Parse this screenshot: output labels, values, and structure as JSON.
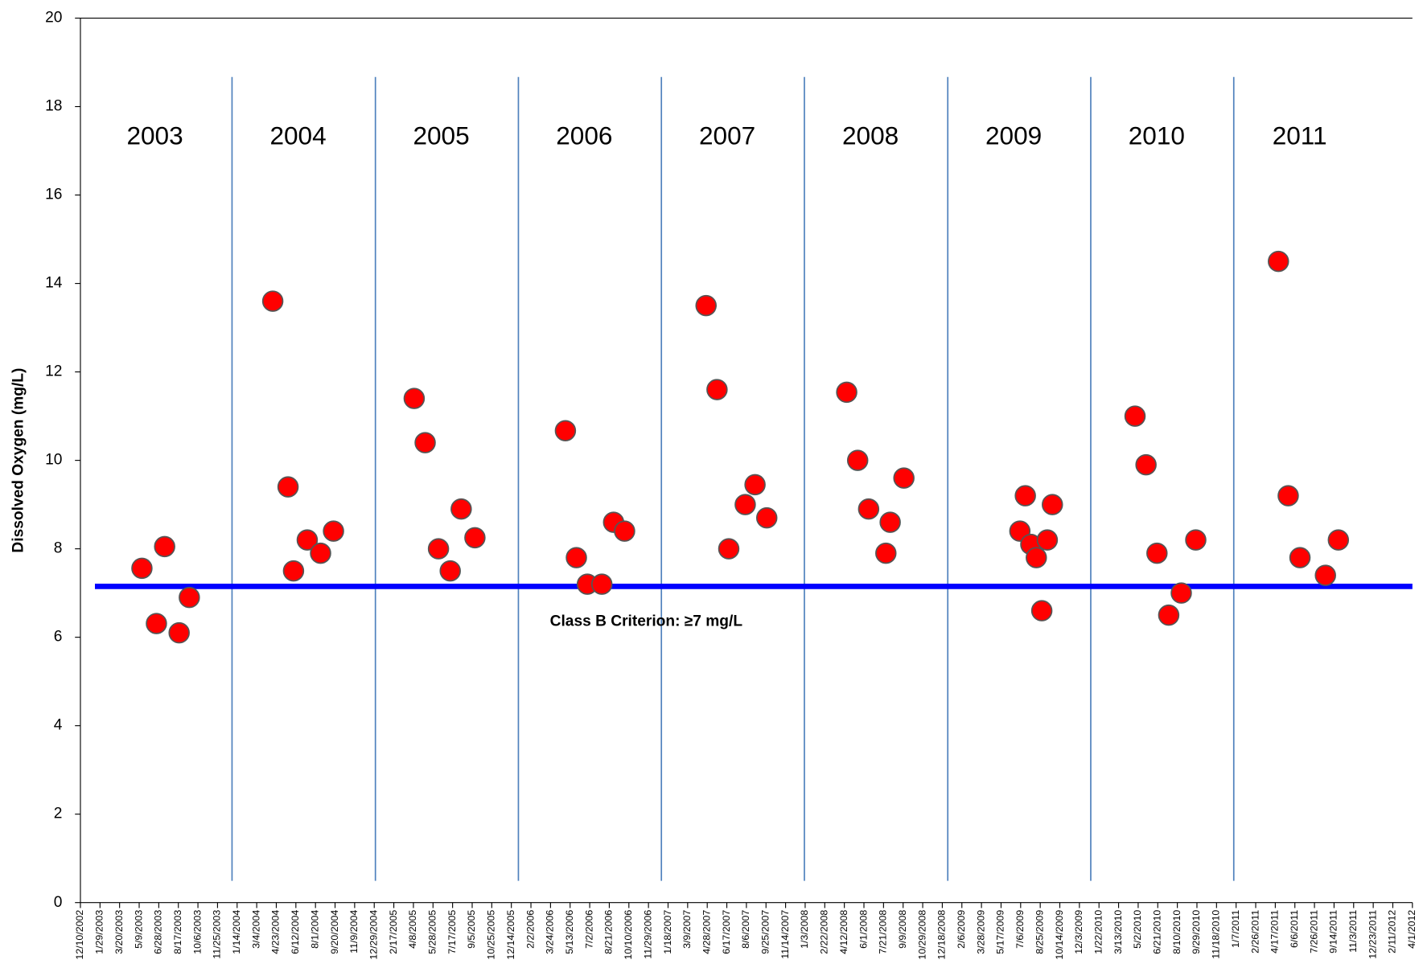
{
  "chart_data": {
    "type": "scatter",
    "y_label": "Dissolved Oxygen (mg/L)",
    "color": "#ff0000",
    "x": [
      "5/16/2003",
      "6/22/2003",
      "7/13/2003",
      "8/19/2003",
      "9/14/2003",
      "4/14/2004",
      "5/23/2004",
      "6/6/2004",
      "7/11/2004",
      "8/14/2004",
      "9/16/2004",
      "4/10/2005",
      "5/8/2005",
      "6/11/2005",
      "7/11/2005",
      "8/8/2005",
      "9/12/2005",
      "5/1/2006",
      "5/29/2006",
      "6/26/2006",
      "8/2/2006",
      "9/1/2006",
      "9/29/2006",
      "4/25/2007",
      "5/23/2007",
      "6/22/2007",
      "8/3/2007",
      "8/28/2007",
      "9/27/2007",
      "4/18/2008",
      "5/16/2008",
      "6/13/2008",
      "8/7/2008",
      "7/27/2008",
      "9/11/2008",
      "7/4/2009",
      "7/18/2009",
      "8/1/2009",
      "8/15/2009",
      "8/29/2009",
      "9/12/2009",
      "9/25/2009",
      "4/24/2010",
      "5/22/2010",
      "6/19/2010",
      "7/19/2010",
      "8/20/2010",
      "9/26/2010",
      "4/25/2011",
      "5/20/2011",
      "6/19/2011",
      "8/23/2011",
      "9/25/2011"
    ],
    "values": [
      7.56,
      6.31,
      8.05,
      6.1,
      6.9,
      13.6,
      9.4,
      7.5,
      8.2,
      7.9,
      8.4,
      11.4,
      10.4,
      8.0,
      7.5,
      8.9,
      8.25,
      10.67,
      7.8,
      7.2,
      7.2,
      8.6,
      8.4,
      13.5,
      11.6,
      8.0,
      9.0,
      9.45,
      8.7,
      11.54,
      10.0,
      8.9,
      8.6,
      7.9,
      9.6,
      8.4,
      9.2,
      8.1,
      7.8,
      6.6,
      8.2,
      9.0,
      11.0,
      9.9,
      7.9,
      6.5,
      7.0,
      8.2,
      14.5,
      9.2,
      7.8,
      7.4,
      8.2
    ],
    "xlim": [
      "12/10/2002",
      "4/1/2012"
    ],
    "xticks": [
      "12/10/2002",
      "1/29/2003",
      "3/20/2003",
      "5/9/2003",
      "6/28/2003",
      "8/17/2003",
      "10/6/2003",
      "11/25/2003",
      "1/14/2004",
      "3/4/2004",
      "4/23/2004",
      "6/12/2004",
      "8/1/2004",
      "9/20/2004",
      "11/9/2004",
      "12/29/2004",
      "2/17/2005",
      "4/8/2005",
      "5/28/2005",
      "7/17/2005",
      "9/5/2005",
      "10/25/2005",
      "12/14/2005",
      "2/2/2006",
      "3/24/2006",
      "5/13/2006",
      "7/2/2006",
      "8/21/2006",
      "10/10/2006",
      "11/29/2006",
      "1/18/2007",
      "3/9/2007",
      "4/28/2007",
      "6/17/2007",
      "8/6/2007",
      "9/25/2007",
      "11/14/2007",
      "1/3/2008",
      "2/22/2008",
      "4/12/2008",
      "6/1/2008",
      "7/21/2008",
      "9/9/2008",
      "10/29/2008",
      "12/18/2008",
      "2/6/2009",
      "3/28/2009",
      "5/17/2009",
      "7/6/2009",
      "8/25/2009",
      "10/14/2009",
      "12/3/2009",
      "1/22/2010",
      "3/13/2010",
      "5/2/2010",
      "6/21/2010",
      "8/10/2010",
      "9/29/2010",
      "11/18/2010",
      "1/7/2011",
      "2/26/2011",
      "4/17/2011",
      "6/6/2011",
      "7/26/2011",
      "9/14/2011",
      "11/3/2011",
      "12/23/2011",
      "2/11/2012",
      "4/1/2012"
    ],
    "ylim": [
      0,
      20
    ],
    "yticks": [
      0,
      2,
      4,
      6,
      8,
      10,
      12,
      14,
      16,
      18,
      20
    ],
    "year_labels": [
      "2003",
      "2004",
      "2005",
      "2006",
      "2007",
      "2008",
      "2009",
      "2010",
      "2011"
    ],
    "criterion": {
      "label": "Class B Criterion:  ≥7 mg/L",
      "value": 7.15
    }
  }
}
